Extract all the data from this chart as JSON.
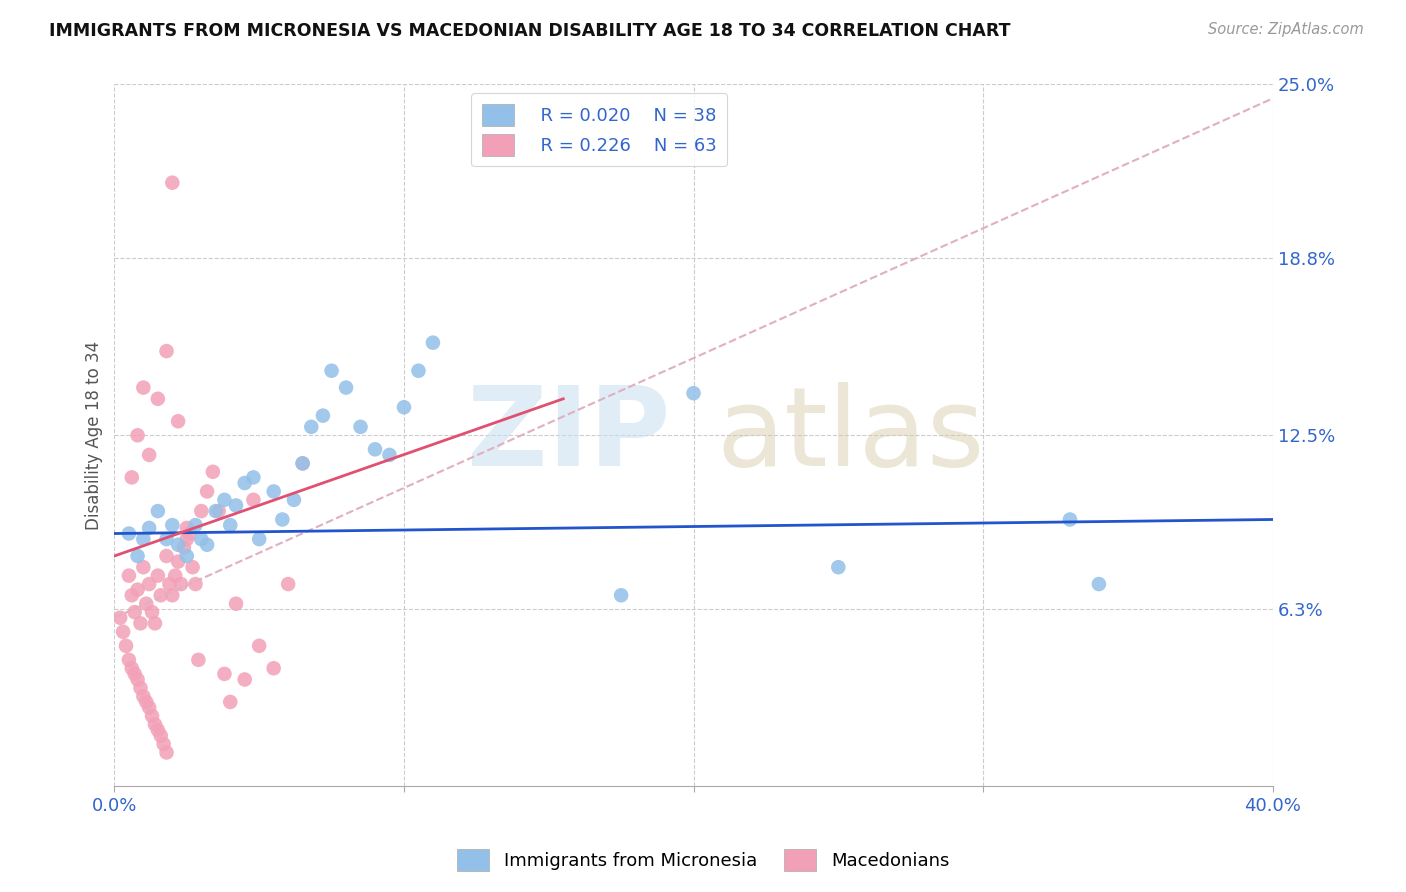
{
  "title": "IMMIGRANTS FROM MICRONESIA VS MACEDONIAN DISABILITY AGE 18 TO 34 CORRELATION CHART",
  "source": "Source: ZipAtlas.com",
  "xlabel": "",
  "ylabel": "Disability Age 18 to 34",
  "xlim": [
    0.0,
    0.4
  ],
  "ylim": [
    0.0,
    0.25
  ],
  "ytick_values_right": [
    0.25,
    0.188,
    0.125,
    0.063
  ],
  "ytick_labels_right": [
    "25.0%",
    "18.8%",
    "12.5%",
    "6.3%"
  ],
  "legend1_label": "Immigrants from Micronesia",
  "legend2_label": "Macedonians",
  "R1": "0.020",
  "N1": "38",
  "R2": "0.226",
  "N2": "63",
  "color_blue": "#92C0E8",
  "color_pink": "#F2A0B8",
  "line_blue": "#2255CC",
  "line_pink": "#E05070",
  "line_dashed_color": "#E0B0C0",
  "blue_regression": [
    0.0,
    0.4,
    0.09,
    0.095
  ],
  "pink_regression_solid": [
    0.0,
    0.155,
    0.082,
    0.138
  ],
  "pink_regression_dashed": [
    0.0,
    0.4,
    0.06,
    0.245
  ],
  "blue_points_x": [
    0.005,
    0.008,
    0.01,
    0.012,
    0.015,
    0.018,
    0.02,
    0.022,
    0.025,
    0.028,
    0.03,
    0.032,
    0.035,
    0.038,
    0.04,
    0.042,
    0.045,
    0.048,
    0.05,
    0.055,
    0.058,
    0.062,
    0.065,
    0.068,
    0.072,
    0.075,
    0.08,
    0.085,
    0.09,
    0.095,
    0.1,
    0.105,
    0.11,
    0.175,
    0.2,
    0.25,
    0.33,
    0.34
  ],
  "blue_points_y": [
    0.09,
    0.082,
    0.088,
    0.092,
    0.098,
    0.088,
    0.093,
    0.086,
    0.082,
    0.093,
    0.088,
    0.086,
    0.098,
    0.102,
    0.093,
    0.1,
    0.108,
    0.11,
    0.088,
    0.105,
    0.095,
    0.102,
    0.115,
    0.128,
    0.132,
    0.148,
    0.142,
    0.128,
    0.12,
    0.118,
    0.135,
    0.148,
    0.158,
    0.068,
    0.14,
    0.078,
    0.095,
    0.072
  ],
  "pink_points_x": [
    0.002,
    0.003,
    0.004,
    0.005,
    0.005,
    0.006,
    0.006,
    0.007,
    0.007,
    0.008,
    0.008,
    0.009,
    0.009,
    0.01,
    0.01,
    0.011,
    0.011,
    0.012,
    0.012,
    0.013,
    0.013,
    0.014,
    0.014,
    0.015,
    0.015,
    0.016,
    0.016,
    0.017,
    0.018,
    0.018,
    0.019,
    0.02,
    0.021,
    0.022,
    0.023,
    0.024,
    0.025,
    0.026,
    0.027,
    0.028,
    0.029,
    0.03,
    0.032,
    0.034,
    0.036,
    0.038,
    0.04,
    0.042,
    0.045,
    0.048,
    0.05,
    0.055,
    0.06,
    0.065,
    0.02,
    0.015,
    0.01,
    0.008,
    0.006,
    0.012,
    0.018,
    0.022,
    0.025
  ],
  "pink_points_y": [
    0.06,
    0.055,
    0.05,
    0.045,
    0.075,
    0.042,
    0.068,
    0.04,
    0.062,
    0.038,
    0.07,
    0.035,
    0.058,
    0.032,
    0.078,
    0.03,
    0.065,
    0.028,
    0.072,
    0.025,
    0.062,
    0.022,
    0.058,
    0.02,
    0.075,
    0.018,
    0.068,
    0.015,
    0.012,
    0.082,
    0.072,
    0.068,
    0.075,
    0.08,
    0.072,
    0.085,
    0.088,
    0.09,
    0.078,
    0.072,
    0.045,
    0.098,
    0.105,
    0.112,
    0.098,
    0.04,
    0.03,
    0.065,
    0.038,
    0.102,
    0.05,
    0.042,
    0.072,
    0.115,
    0.215,
    0.138,
    0.142,
    0.125,
    0.11,
    0.118,
    0.155,
    0.13,
    0.092
  ]
}
